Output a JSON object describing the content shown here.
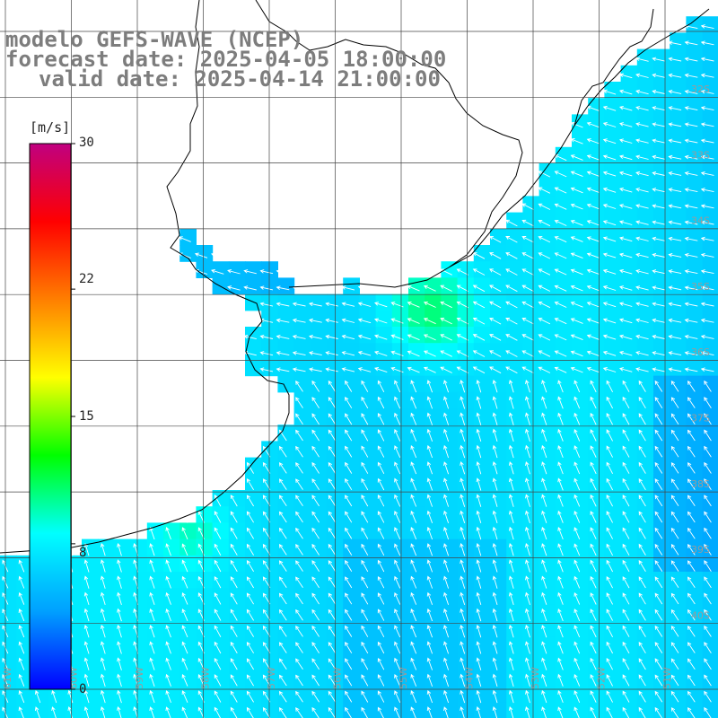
{
  "header": {
    "model": "modelo GEFS-WAVE (NCEP)",
    "forecast": "forecast date: 2025-04-05 18:00:00",
    "valid": "valid date: 2025-04-14 21:00:00"
  },
  "colorbar": {
    "unit": "[m/s]",
    "tick_labels": [
      "30",
      "22",
      "15",
      "8",
      "0"
    ],
    "tick_values": [
      30,
      22,
      15,
      8,
      0
    ],
    "min": 0,
    "max": 30,
    "colors": [
      "#0000ff",
      "#00a0ff",
      "#00ffff",
      "#00ff00",
      "#ffff00",
      "#ff7f00",
      "#ff0000",
      "#c00080"
    ]
  },
  "map": {
    "lat_labels": [
      "32S",
      "33S",
      "34S",
      "35S",
      "36S",
      "37S",
      "38S",
      "39S",
      "40S"
    ],
    "lon_labels": [
      "61W",
      "60W",
      "59W",
      "58W",
      "57W",
      "56W",
      "55W",
      "54W",
      "53W",
      "52W",
      "51W"
    ],
    "land_color": "#ffffff",
    "grid_color": "#444444",
    "arrow_color": "#ffffff"
  }
}
